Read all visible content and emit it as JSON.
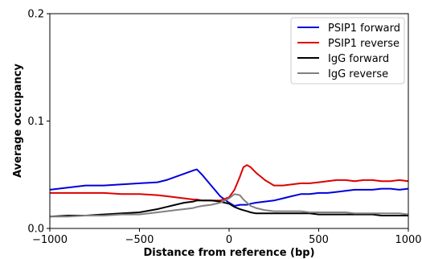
{
  "chart_data": {
    "type": "line",
    "title": "",
    "xlabel": "Distance from reference (bp)",
    "ylabel": "Average occupancy",
    "xlim": [
      -1000,
      1000
    ],
    "ylim": [
      0,
      0.2
    ],
    "x_ticks": [
      -1000,
      -500,
      0,
      500,
      1000
    ],
    "x_tick_labels": [
      "−1000",
      "−500",
      "0",
      "500",
      "1000"
    ],
    "y_ticks": [
      0,
      0.1,
      0.2
    ],
    "y_tick_labels": [
      "0.0",
      "0.1",
      "0.2"
    ],
    "grid": false,
    "legend_position": "top-right",
    "x": [
      -1000,
      -900,
      -800,
      -700,
      -600,
      -500,
      -400,
      -350,
      -300,
      -250,
      -200,
      -180,
      -150,
      -100,
      -50,
      0,
      30,
      60,
      80,
      100,
      120,
      150,
      200,
      250,
      300,
      350,
      400,
      450,
      500,
      550,
      600,
      650,
      700,
      750,
      800,
      850,
      900,
      950,
      1000
    ],
    "series": [
      {
        "name": "PSIP1 forward",
        "color": "#0000dd",
        "values": [
          0.036,
          0.038,
          0.04,
          0.04,
          0.041,
          0.042,
          0.043,
          0.045,
          0.048,
          0.051,
          0.054,
          0.055,
          0.05,
          0.04,
          0.03,
          0.024,
          0.021,
          0.022,
          0.022,
          0.022,
          0.023,
          0.024,
          0.025,
          0.026,
          0.028,
          0.03,
          0.032,
          0.032,
          0.033,
          0.033,
          0.034,
          0.035,
          0.036,
          0.036,
          0.036,
          0.037,
          0.037,
          0.036,
          0.037
        ]
      },
      {
        "name": "PSIP1 reverse",
        "color": "#dd0000",
        "values": [
          0.033,
          0.033,
          0.033,
          0.033,
          0.032,
          0.032,
          0.031,
          0.03,
          0.029,
          0.028,
          0.027,
          0.027,
          0.026,
          0.026,
          0.026,
          0.029,
          0.036,
          0.048,
          0.057,
          0.059,
          0.057,
          0.052,
          0.045,
          0.04,
          0.04,
          0.041,
          0.042,
          0.042,
          0.043,
          0.044,
          0.045,
          0.045,
          0.044,
          0.045,
          0.045,
          0.044,
          0.044,
          0.045,
          0.044
        ]
      },
      {
        "name": "IgG forward",
        "color": "#000000",
        "values": [
          0.011,
          0.012,
          0.012,
          0.013,
          0.014,
          0.015,
          0.018,
          0.02,
          0.022,
          0.024,
          0.025,
          0.026,
          0.026,
          0.026,
          0.025,
          0.023,
          0.02,
          0.018,
          0.017,
          0.016,
          0.015,
          0.014,
          0.014,
          0.014,
          0.014,
          0.014,
          0.014,
          0.014,
          0.013,
          0.013,
          0.013,
          0.013,
          0.013,
          0.013,
          0.013,
          0.012,
          0.012,
          0.012,
          0.012
        ]
      },
      {
        "name": "IgG reverse",
        "color": "#808080",
        "values": [
          0.011,
          0.011,
          0.012,
          0.012,
          0.013,
          0.013,
          0.015,
          0.016,
          0.017,
          0.018,
          0.019,
          0.02,
          0.021,
          0.022,
          0.024,
          0.028,
          0.032,
          0.031,
          0.027,
          0.024,
          0.021,
          0.019,
          0.017,
          0.016,
          0.016,
          0.016,
          0.016,
          0.015,
          0.015,
          0.015,
          0.015,
          0.015,
          0.014,
          0.014,
          0.014,
          0.014,
          0.014,
          0.014,
          0.013
        ]
      }
    ]
  }
}
